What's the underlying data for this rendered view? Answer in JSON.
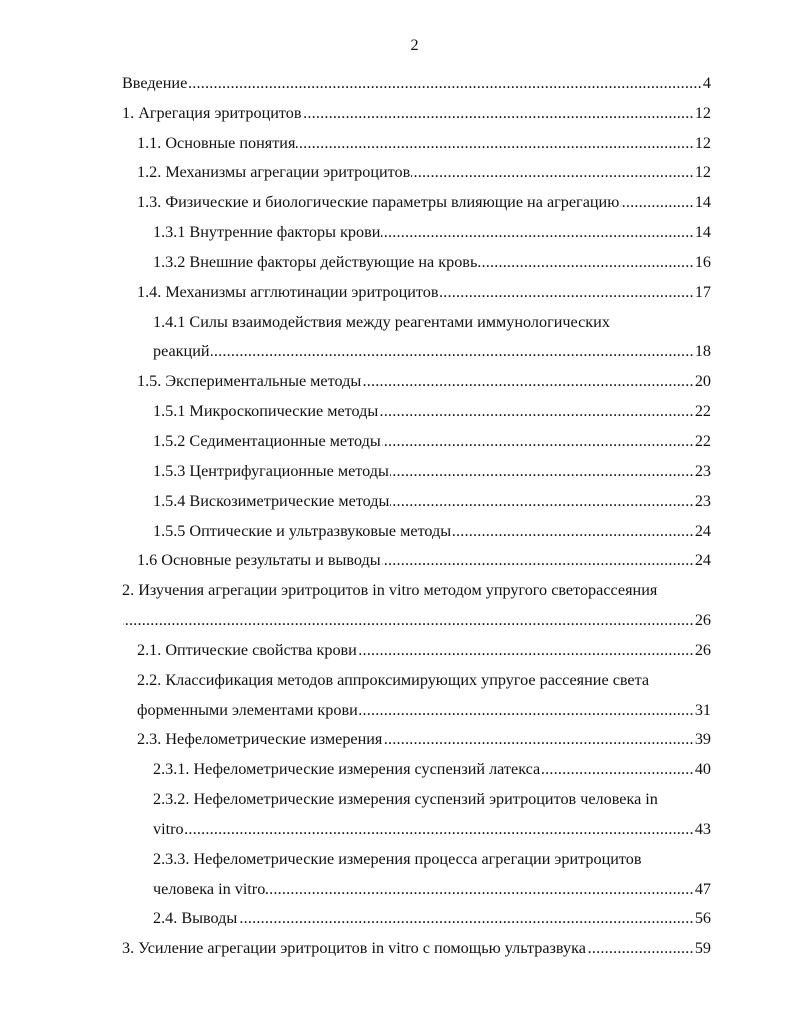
{
  "page_number": "2",
  "toc": [
    {
      "level": 1,
      "lines": [
        "Введение "
      ],
      "page": "4"
    },
    {
      "level": 1,
      "lines": [
        "1. Агрегация эритроцитов"
      ],
      "page": "12"
    },
    {
      "level": 2,
      "lines": [
        "1.1. Основные понятия"
      ],
      "page": "12"
    },
    {
      "level": 2,
      "lines": [
        "1.2. Механизмы агрегации эритроцитов "
      ],
      "page": "12"
    },
    {
      "level": 2,
      "lines": [
        "1.3. Физические и биологические параметры влияющие на агрегацию "
      ],
      "page": "14"
    },
    {
      "level": 3,
      "lines": [
        "1.3.1 Внутренние факторы крови "
      ],
      "page": "14"
    },
    {
      "level": 3,
      "lines": [
        "1.3.2 Внешние факторы действующие на кровь"
      ],
      "page": "16"
    },
    {
      "level": 2,
      "lines": [
        "1.4. Механизмы агглютинации эритроцитов"
      ],
      "page": "17"
    },
    {
      "level": 3,
      "lines": [
        "1.4.1 Силы взаимодействия между реагентами иммунологических",
        "реакций"
      ],
      "page": "18"
    },
    {
      "level": 2,
      "lines": [
        "1.5. Экспериментальные методы "
      ],
      "page": "20"
    },
    {
      "level": 3,
      "lines": [
        "1.5.1 Микроскопические методы "
      ],
      "page": "22"
    },
    {
      "level": 3,
      "lines": [
        "1.5.2 Седиментационные методы"
      ],
      "page": "22"
    },
    {
      "level": 3,
      "lines": [
        "1.5.3 Центрифугационные методы"
      ],
      "page": "23"
    },
    {
      "level": 3,
      "lines": [
        "1.5.4 Вискозиметрические методы"
      ],
      "page": "23"
    },
    {
      "level": 3,
      "lines": [
        "1.5.5 Оптические и ультразвуковые методы"
      ],
      "page": "24"
    },
    {
      "level": 2,
      "lines": [
        "1.6 Основные результаты и выводы"
      ],
      "page": "24"
    },
    {
      "level": 1,
      "lines": [
        "2. Изучения агрегации эритроцитов in vitro методом упругого светорассеяния",
        ""
      ],
      "page": "26"
    },
    {
      "level": 2,
      "lines": [
        "2.1. Оптические свойства крови "
      ],
      "page": "26"
    },
    {
      "level": 2,
      "lines": [
        "2.2. Классификация методов аппроксимирующих упругое рассеяние света",
        "форменными элементами крови "
      ],
      "page": "31"
    },
    {
      "level": 2,
      "lines": [
        "2.3. Нефелометрические измерения "
      ],
      "page": "39"
    },
    {
      "level": 3,
      "lines": [
        "2.3.1. Нефелометрические измерения суспензий латекса "
      ],
      "page": "40"
    },
    {
      "level": 3,
      "lines": [
        "2.3.2. Нефелометрические измерения суспензий эритроцитов человека in",
        "vitro"
      ],
      "page": "43"
    },
    {
      "level": 3,
      "lines": [
        "2.3.3. Нефелометрические измерения процесса агрегации эритроцитов",
        "человека in vitro"
      ],
      "page": "47"
    },
    {
      "level": 3,
      "lines": [
        "2.4. Выводы"
      ],
      "page": "56"
    },
    {
      "level": 1,
      "lines": [
        "3. Усиление агрегации эритроцитов in vitro с помощью ультразвука "
      ],
      "page": "59"
    }
  ]
}
